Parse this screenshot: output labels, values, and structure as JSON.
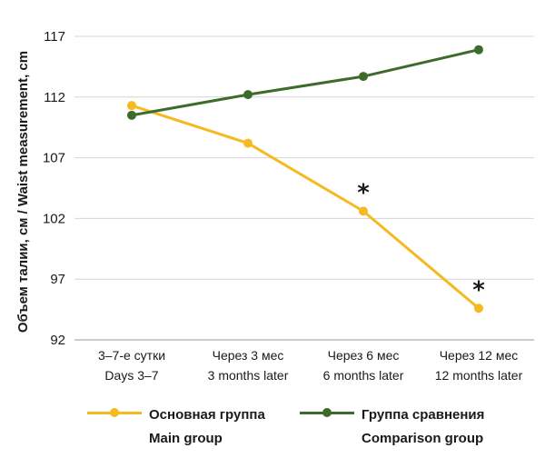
{
  "chart_data": {
    "type": "line",
    "categories": [
      [
        "3–7-е сутки",
        "Days 3–7"
      ],
      [
        "Через 3 мес",
        "3 months later"
      ],
      [
        "Через 6 мес",
        "6 months later"
      ],
      [
        "Через 12 мес",
        "12 months later"
      ]
    ],
    "ylabel": "Объем талии, см / Waist measurement, cm",
    "ylim": [
      92,
      117
    ],
    "yticks": [
      92,
      97,
      102,
      107,
      112,
      117
    ],
    "grid": "horizontal",
    "legend_position": "bottom",
    "series": [
      {
        "name": "Основная группа",
        "name_en": "Main group",
        "color": "#f5b921",
        "values": [
          111.3,
          108.2,
          102.6,
          94.6
        ],
        "significance": [
          "",
          "",
          "*",
          "*"
        ]
      },
      {
        "name": "Группа сравнения",
        "name_en": "Comparison group",
        "color": "#3d6b2a",
        "values": [
          110.5,
          112.2,
          113.7,
          115.9
        ],
        "significance": [
          "",
          "",
          "",
          ""
        ]
      }
    ]
  }
}
